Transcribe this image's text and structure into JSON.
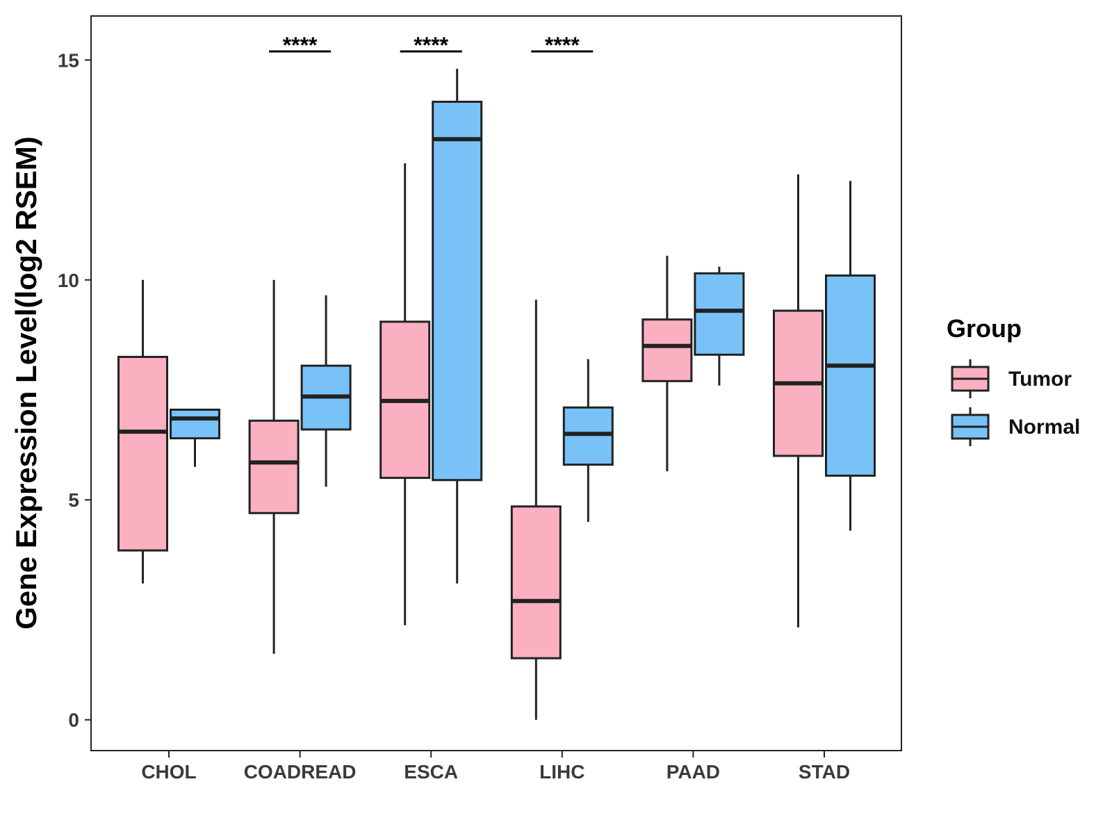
{
  "chart_data": {
    "type": "boxplot",
    "title": "",
    "xlabel": "",
    "ylabel": "Gene Expression Level(log2 RSEM)",
    "ylim": [
      -0.7,
      16
    ],
    "yticks": [
      0,
      5,
      10,
      15
    ],
    "categories": [
      "CHOL",
      "COADREAD",
      "ESCA",
      "LIHC",
      "PAAD",
      "STAD"
    ],
    "legend": {
      "title": "Group",
      "position": "right",
      "entries": [
        {
          "name": "Tumor",
          "color": "#FBB0C1"
        },
        {
          "name": "Normal",
          "color": "#78C2F8"
        }
      ]
    },
    "series": [
      {
        "name": "Tumor",
        "color": "#FBB0C1",
        "boxes": [
          {
            "category": "CHOL",
            "min": 3.1,
            "q1": 3.85,
            "median": 6.55,
            "q3": 8.25,
            "max": 10.0
          },
          {
            "category": "COADREAD",
            "min": 1.5,
            "q1": 4.7,
            "median": 5.85,
            "q3": 6.8,
            "max": 10.0
          },
          {
            "category": "ESCA",
            "min": 2.15,
            "q1": 5.5,
            "median": 7.25,
            "q3": 9.05,
            "max": 12.65
          },
          {
            "category": "LIHC",
            "min": 0.0,
            "q1": 1.4,
            "median": 2.7,
            "q3": 4.85,
            "max": 9.55
          },
          {
            "category": "PAAD",
            "min": 5.65,
            "q1": 7.7,
            "median": 8.5,
            "q3": 9.1,
            "max": 10.55
          },
          {
            "category": "STAD",
            "min": 2.1,
            "q1": 6.0,
            "median": 7.65,
            "q3": 9.3,
            "max": 12.4
          }
        ]
      },
      {
        "name": "Normal",
        "color": "#78C2F8",
        "boxes": [
          {
            "category": "CHOL",
            "min": 5.75,
            "q1": 6.4,
            "median": 6.85,
            "q3": 7.05,
            "max": 7.05
          },
          {
            "category": "COADREAD",
            "min": 5.3,
            "q1": 6.6,
            "median": 7.35,
            "q3": 8.05,
            "max": 9.65
          },
          {
            "category": "ESCA",
            "min": 3.1,
            "q1": 5.45,
            "median": 13.2,
            "q3": 14.05,
            "max": 14.8
          },
          {
            "category": "LIHC",
            "min": 4.5,
            "q1": 5.8,
            "median": 6.5,
            "q3": 7.1,
            "max": 8.2
          },
          {
            "category": "PAAD",
            "min": 7.6,
            "q1": 8.3,
            "median": 9.3,
            "q3": 10.15,
            "max": 10.3
          },
          {
            "category": "STAD",
            "min": 4.3,
            "q1": 5.55,
            "median": 8.05,
            "q3": 10.1,
            "max": 12.25
          }
        ]
      }
    ],
    "annotations": [
      {
        "category": "COADREAD",
        "text": "****"
      },
      {
        "category": "ESCA",
        "text": "****"
      },
      {
        "category": "LIHC",
        "text": "****"
      }
    ]
  }
}
